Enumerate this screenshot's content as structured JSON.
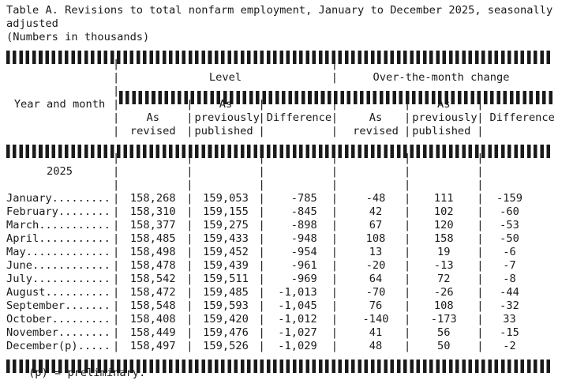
{
  "document": {
    "title_line1": "Table A. Revisions to total nonfarm employment, January to December 2025, seasonally",
    "title_line2": "adjusted",
    "units_note": "(Numbers in thousands)",
    "footnote": "(p) = preliminary."
  },
  "glyphs": {
    "column_divider": "|"
  },
  "table": {
    "row_header_label": "Year and month",
    "groups": {
      "level": "Level",
      "otm": "Over-the-month change"
    },
    "subheaders": {
      "as": "As",
      "revised": "revised",
      "previously": "previously",
      "published": "published",
      "difference": "Difference"
    },
    "year_label": "2025",
    "rows": [
      {
        "month": "January.........",
        "level_as_revised": "158,268",
        "level_as_published": "159,053",
        "level_difference": "-785",
        "otm_as_revised": "-48",
        "otm_as_published": "111",
        "otm_difference": "-159"
      },
      {
        "month": "February........",
        "level_as_revised": "158,310",
        "level_as_published": "159,155",
        "level_difference": "-845",
        "otm_as_revised": "42",
        "otm_as_published": "102",
        "otm_difference": "-60"
      },
      {
        "month": "March...........",
        "level_as_revised": "158,377",
        "level_as_published": "159,275",
        "level_difference": "-898",
        "otm_as_revised": "67",
        "otm_as_published": "120",
        "otm_difference": "-53"
      },
      {
        "month": "April...........",
        "level_as_revised": "158,485",
        "level_as_published": "159,433",
        "level_difference": "-948",
        "otm_as_revised": "108",
        "otm_as_published": "158",
        "otm_difference": "-50"
      },
      {
        "month": "May.............",
        "level_as_revised": "158,498",
        "level_as_published": "159,452",
        "level_difference": "-954",
        "otm_as_revised": "13",
        "otm_as_published": "19",
        "otm_difference": "-6"
      },
      {
        "month": "June............",
        "level_as_revised": "158,478",
        "level_as_published": "159,439",
        "level_difference": "-961",
        "otm_as_revised": "-20",
        "otm_as_published": "-13",
        "otm_difference": "-7"
      },
      {
        "month": "July............",
        "level_as_revised": "158,542",
        "level_as_published": "159,511",
        "level_difference": "-969",
        "otm_as_revised": "64",
        "otm_as_published": "72",
        "otm_difference": "-8"
      },
      {
        "month": "August..........",
        "level_as_revised": "158,472",
        "level_as_published": "159,485",
        "level_difference": "-1,013",
        "otm_as_revised": "-70",
        "otm_as_published": "-26",
        "otm_difference": "-44"
      },
      {
        "month": "September.......",
        "level_as_revised": "158,548",
        "level_as_published": "159,593",
        "level_difference": "-1,045",
        "otm_as_revised": "76",
        "otm_as_published": "108",
        "otm_difference": "-32"
      },
      {
        "month": "October.........",
        "level_as_revised": "158,408",
        "level_as_published": "159,420",
        "level_difference": "-1,012",
        "otm_as_revised": "-140",
        "otm_as_published": "-173",
        "otm_difference": "33"
      },
      {
        "month": "November........",
        "level_as_revised": "158,449",
        "level_as_published": "159,476",
        "level_difference": "-1,027",
        "otm_as_revised": "41",
        "otm_as_published": "56",
        "otm_difference": "-15"
      },
      {
        "month": "December(p).....",
        "level_as_revised": "158,497",
        "level_as_published": "159,526",
        "level_difference": "-1,029",
        "otm_as_revised": "48",
        "otm_as_published": "50",
        "otm_difference": "-2"
      }
    ]
  }
}
